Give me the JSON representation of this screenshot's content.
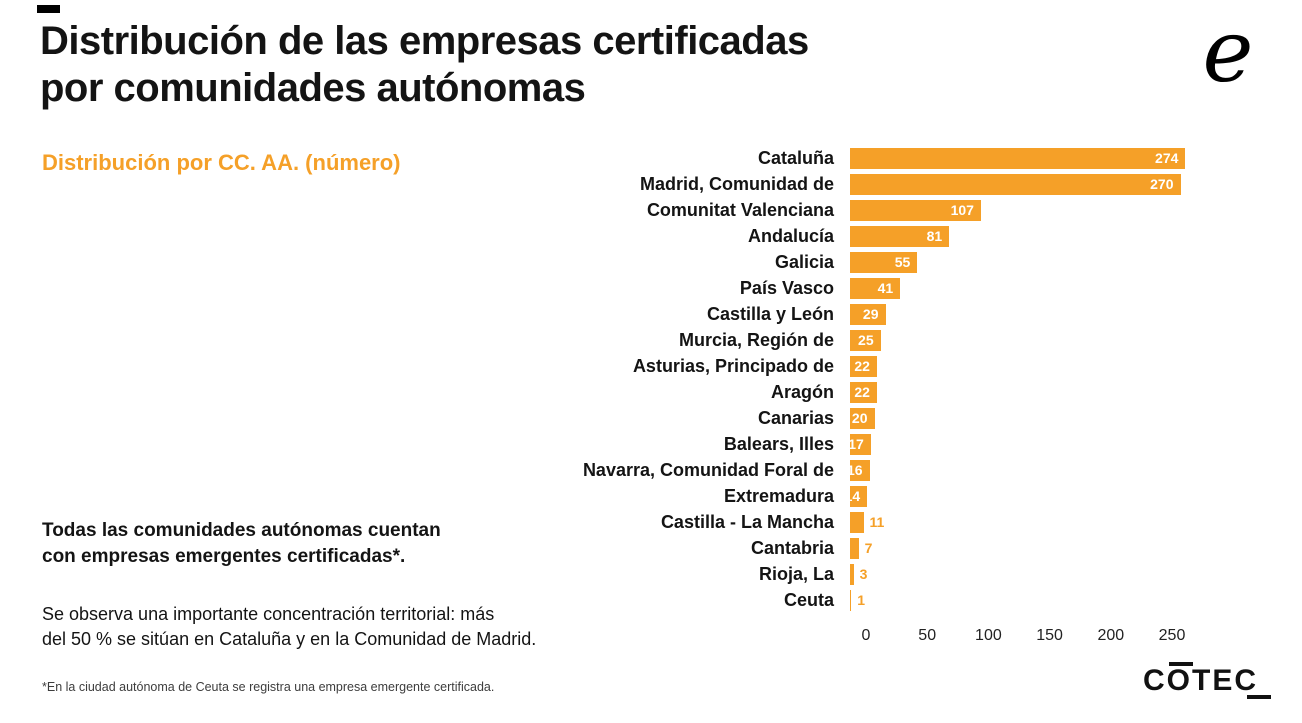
{
  "header": {
    "title": "Distribución de las empresas certificadas\npor comunidades autónomas",
    "subtitle": "Distribución por CC. AA. (número)",
    "logo_glyph": "e"
  },
  "chart_data": {
    "type": "bar",
    "orientation": "horizontal",
    "title": "Distribución por CC. AA. (número)",
    "categories": [
      "Cataluña",
      "Madrid, Comunidad de",
      "Comunitat Valenciana",
      "Andalucía",
      "Galicia",
      "País Vasco",
      "Castilla y León",
      "Murcia, Región de",
      "Asturias, Principado de",
      "Aragón",
      "Canarias",
      "Balears, Illes",
      "Navarra, Comunidad Foral de",
      "Extremadura",
      "Castilla - La Mancha",
      "Cantabria",
      "Rioja, La",
      "Ceuta"
    ],
    "values": [
      274,
      270,
      107,
      81,
      55,
      41,
      29,
      25,
      22,
      22,
      20,
      17,
      16,
      14,
      11,
      7,
      3,
      1
    ],
    "xlabel": "",
    "ylabel": "",
    "xlim": [
      0,
      250
    ],
    "x_ticks": [
      0,
      50,
      100,
      150,
      200,
      250
    ],
    "bar_color": "#F5A028",
    "value_label_inside_color": "#ffffff",
    "value_label_outside_color": "#F5A028",
    "legend": "none",
    "grid": false
  },
  "notes": {
    "bold_note": "Todas las comunidades autónomas cuentan\ncon empresas emergentes certificadas*.",
    "body_note": "Se observa una importante concentración territorial: más\ndel 50 % se sitúan en Cataluña y en la Comunidad de Madrid.",
    "footnote": "*En la ciudad autónoma de Ceuta se registra una empresa emergente certificada."
  },
  "footer": {
    "brand": "COTEC"
  }
}
